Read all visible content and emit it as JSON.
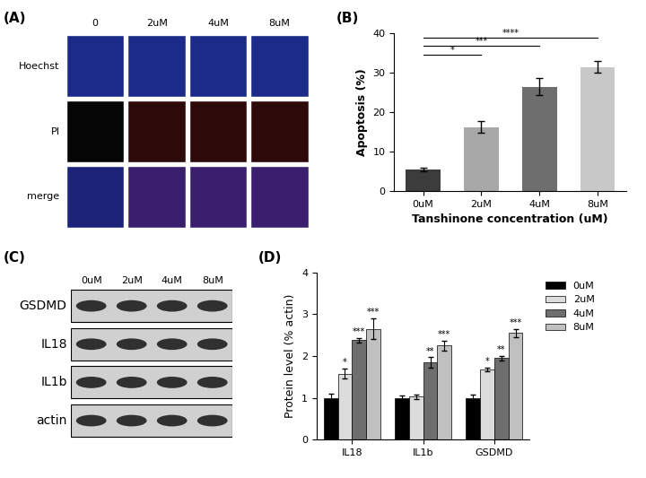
{
  "chart_data": [
    {
      "type": "bar",
      "title": "(B)",
      "categories": [
        "0uM",
        "2uM",
        "4uM",
        "8uM"
      ],
      "values": [
        5.5,
        16.3,
        26.5,
        31.5
      ],
      "errors": [
        0.5,
        1.5,
        2.2,
        1.5
      ],
      "colors": [
        "#3c3c3c",
        "#a8a8a8",
        "#6e6e6e",
        "#c8c8c8"
      ],
      "x_label": "Tanshinone concentration (uM)",
      "y_label": "Apoptosis (%)",
      "ylim": [
        0,
        40
      ],
      "yticks": [
        0,
        10,
        20,
        30,
        40
      ],
      "significance": [
        {
          "from": "0uM",
          "to": "2uM",
          "label": "*"
        },
        {
          "from": "0uM",
          "to": "4uM",
          "label": "***"
        },
        {
          "from": "0uM",
          "to": "8uM",
          "label": "****"
        }
      ]
    },
    {
      "type": "bar",
      "title": "(D)",
      "categories": [
        "IL18",
        "IL1b",
        "GSDMD"
      ],
      "y_label": "Protein level (% actin)",
      "ylim": [
        0,
        4
      ],
      "yticks": [
        0,
        1,
        2,
        3,
        4
      ],
      "legend": "upper left",
      "series": [
        {
          "name": "0uM",
          "color": "#000000",
          "values": [
            1.0,
            1.0,
            1.0
          ],
          "errors": [
            0.1,
            0.05,
            0.08
          ],
          "significance": [
            null,
            null,
            null
          ]
        },
        {
          "name": "2uM",
          "color": "#dcdcdc",
          "values": [
            1.58,
            1.03,
            1.68
          ],
          "errors": [
            0.12,
            0.06,
            0.05
          ],
          "significance": [
            "*",
            null,
            "*"
          ]
        },
        {
          "name": "4uM",
          "color": "#6e6e6e",
          "values": [
            2.38,
            1.85,
            1.95
          ],
          "errors": [
            0.05,
            0.12,
            0.06
          ],
          "significance": [
            "***",
            "**",
            "**"
          ]
        },
        {
          "name": "8uM",
          "color": "#c0c0c0",
          "values": [
            2.65,
            2.25,
            2.55
          ],
          "errors": [
            0.25,
            0.12,
            0.1
          ],
          "significance": [
            "***",
            "***",
            "***"
          ]
        }
      ]
    }
  ],
  "image_grid": {
    "panel_label": "(A)",
    "columns": [
      "0",
      "2uM",
      "4uM",
      "8uM"
    ],
    "rows": [
      "Hoechst",
      "PI",
      "merge"
    ]
  },
  "western_blot": {
    "panel_label": "(C)",
    "lanes": [
      "0uM",
      "2uM",
      "4uM",
      "8uM"
    ],
    "bands": [
      "GSDMD",
      "IL18",
      "IL1b",
      "actin"
    ]
  }
}
